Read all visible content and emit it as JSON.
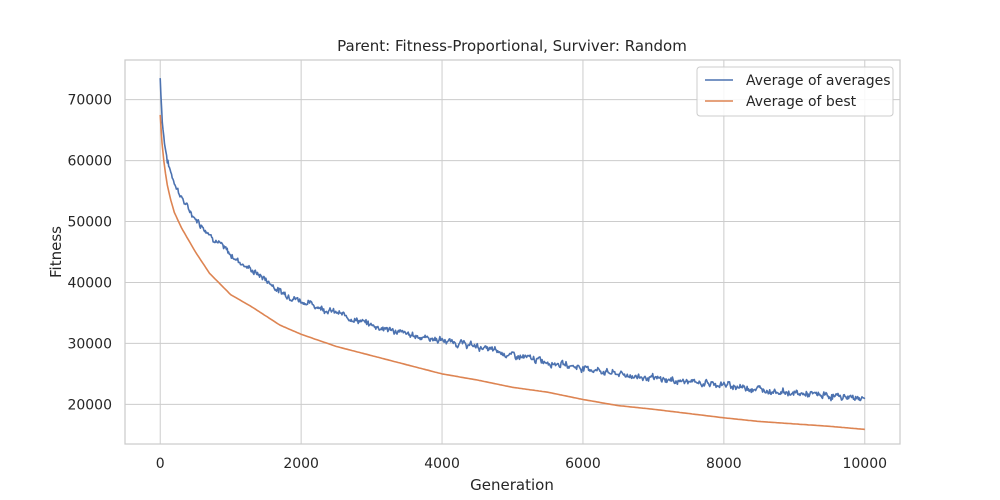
{
  "chart_data": {
    "type": "line",
    "title": "Parent: Fitness-Proportional, Surviver: Random",
    "xlabel": "Generation",
    "ylabel": "Fitness",
    "xlim": [
      -500,
      10500
    ],
    "ylim": [
      13500,
      76500
    ],
    "xticks": [
      0,
      2000,
      4000,
      6000,
      8000,
      10000
    ],
    "yticks": [
      20000,
      30000,
      40000,
      50000,
      60000,
      70000
    ],
    "grid": true,
    "legend_position": "top-right",
    "series": [
      {
        "name": "Average of averages",
        "color": "#4c72b0",
        "noise": 800,
        "x": [
          0,
          30,
          60,
          100,
          150,
          200,
          300,
          400,
          500,
          700,
          1000,
          1300,
          1500,
          1700,
          2000,
          2500,
          3000,
          3500,
          4000,
          4500,
          5000,
          5500,
          6000,
          6500,
          7000,
          7500,
          8000,
          8500,
          9000,
          9500,
          10000
        ],
        "y": [
          73500,
          66500,
          63000,
          60000,
          58000,
          56500,
          54000,
          52000,
          50500,
          48000,
          44500,
          42000,
          40500,
          38500,
          37000,
          35000,
          33000,
          31500,
          30500,
          29500,
          28000,
          27000,
          26000,
          25000,
          24200,
          23700,
          23200,
          22500,
          21800,
          21400,
          21000
        ]
      },
      {
        "name": "Average of best",
        "color": "#dd8452",
        "noise": 0,
        "x": [
          0,
          30,
          60,
          100,
          150,
          200,
          300,
          400,
          500,
          700,
          1000,
          1300,
          1500,
          1700,
          2000,
          2500,
          3000,
          3500,
          4000,
          4500,
          5000,
          5500,
          6000,
          6500,
          7000,
          7500,
          8000,
          8500,
          9000,
          9500,
          10000
        ],
        "y": [
          67500,
          62000,
          59000,
          56000,
          53500,
          51500,
          49000,
          47000,
          45000,
          41500,
          38000,
          36000,
          34500,
          33000,
          31500,
          29500,
          28000,
          26500,
          25000,
          24000,
          22800,
          22000,
          20800,
          19800,
          19200,
          18500,
          17800,
          17200,
          16800,
          16400,
          15900
        ]
      }
    ]
  }
}
